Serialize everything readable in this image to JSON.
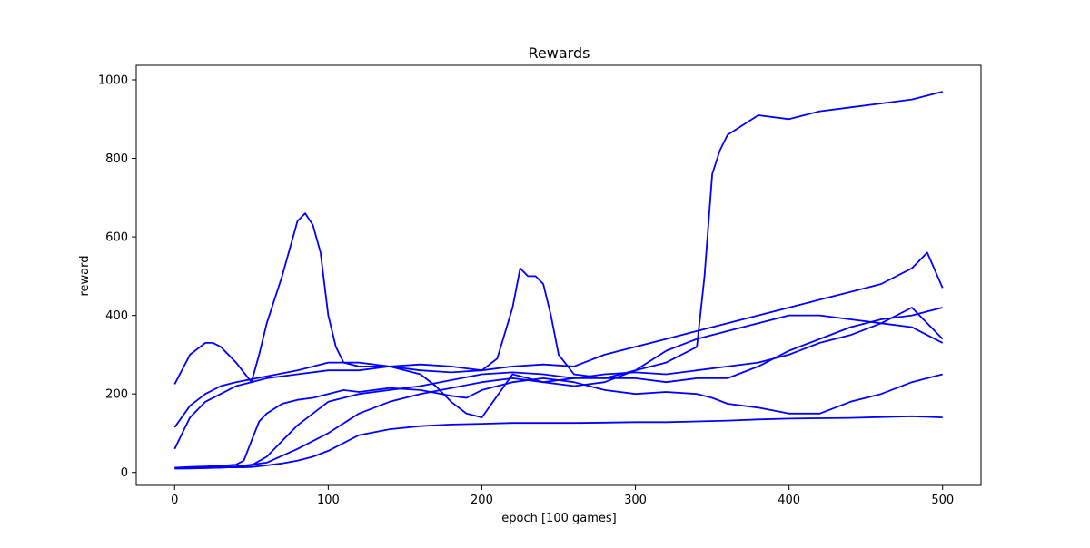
{
  "chart_data": {
    "type": "line",
    "title": "Rewards",
    "xlabel": "epoch [100 games]",
    "ylabel": "reward",
    "xlim": [
      -25,
      525
    ],
    "ylim": [
      -33,
      1037
    ],
    "xticks": [
      0,
      100,
      200,
      300,
      400,
      500
    ],
    "yticks": [
      0,
      200,
      400,
      600,
      800,
      1000
    ],
    "grid": false,
    "color": "#0000ff",
    "series": [
      {
        "x": [
          0,
          5,
          10,
          15,
          20,
          25,
          30,
          35,
          40,
          45,
          50,
          55,
          60,
          70,
          80,
          90,
          100,
          110,
          120,
          140,
          160,
          180,
          200,
          220,
          240,
          260,
          280,
          300,
          320,
          340,
          360,
          380,
          400,
          420,
          440,
          460,
          480,
          500
        ],
        "values": [
          10,
          10,
          11,
          11,
          12,
          12,
          12,
          13,
          13,
          13,
          14,
          16,
          18,
          23,
          30,
          40,
          55,
          75,
          95,
          110,
          118,
          122,
          124,
          126,
          126,
          126,
          127,
          128,
          128,
          130,
          132,
          135,
          137,
          138,
          139,
          141,
          143,
          140
        ]
      },
      {
        "x": [
          0,
          10,
          20,
          30,
          40,
          45,
          50,
          55,
          60,
          70,
          80,
          90,
          100,
          110,
          120,
          140,
          160,
          180,
          190,
          200,
          220,
          240,
          260,
          280,
          300,
          320,
          340,
          350,
          360,
          380,
          400,
          420,
          440,
          460,
          480,
          500
        ],
        "values": [
          12,
          14,
          15,
          17,
          20,
          30,
          80,
          130,
          150,
          175,
          185,
          190,
          200,
          210,
          205,
          215,
          210,
          195,
          190,
          210,
          230,
          240,
          230,
          210,
          200,
          205,
          200,
          190,
          175,
          165,
          150,
          150,
          180,
          200,
          230,
          250
        ]
      },
      {
        "x": [
          0,
          10,
          20,
          25,
          30,
          40,
          50,
          55,
          60,
          70,
          80,
          85,
          90,
          95,
          100,
          105,
          110,
          120,
          140,
          160,
          170,
          180,
          190,
          200,
          220,
          240,
          260,
          280,
          300,
          320,
          340,
          360,
          380,
          400,
          420,
          440,
          460,
          480,
          490,
          500
        ],
        "values": [
          225,
          300,
          330,
          330,
          320,
          280,
          230,
          300,
          380,
          500,
          640,
          660,
          630,
          560,
          400,
          320,
          280,
          270,
          270,
          250,
          220,
          180,
          150,
          140,
          250,
          230,
          220,
          230,
          260,
          310,
          340,
          360,
          380,
          400,
          400,
          390,
          380,
          370,
          350,
          330
        ]
      },
      {
        "x": [
          0,
          5,
          10,
          20,
          30,
          40,
          50,
          60,
          80,
          100,
          120,
          140,
          160,
          180,
          200,
          210,
          220,
          225,
          230,
          235,
          240,
          245,
          250,
          260,
          280,
          300,
          320,
          340,
          360,
          380,
          400,
          420,
          440,
          460,
          480,
          490,
          500
        ],
        "values": [
          60,
          100,
          140,
          180,
          200,
          220,
          230,
          240,
          250,
          260,
          260,
          270,
          260,
          255,
          260,
          290,
          420,
          520,
          500,
          500,
          480,
          400,
          300,
          250,
          240,
          240,
          230,
          240,
          240,
          270,
          310,
          340,
          370,
          390,
          400,
          410,
          420
        ]
      },
      {
        "x": [
          0,
          10,
          20,
          30,
          40,
          60,
          80,
          100,
          120,
          140,
          160,
          180,
          200,
          220,
          240,
          260,
          280,
          300,
          320,
          340,
          360,
          380,
          400,
          420,
          440,
          460,
          480,
          490,
          500
        ],
        "values": [
          115,
          170,
          200,
          220,
          230,
          245,
          260,
          280,
          280,
          270,
          275,
          270,
          260,
          270,
          275,
          270,
          300,
          320,
          340,
          360,
          380,
          400,
          420,
          440,
          460,
          480,
          520,
          560,
          470
        ]
      },
      {
        "x": [
          0,
          10,
          20,
          30,
          40,
          50,
          60,
          80,
          100,
          120,
          140,
          160,
          180,
          200,
          220,
          240,
          260,
          280,
          300,
          320,
          340,
          345,
          350,
          355,
          360,
          380,
          400,
          420,
          440,
          460,
          480,
          500
        ],
        "values": [
          12,
          12,
          13,
          14,
          15,
          18,
          40,
          120,
          180,
          200,
          210,
          220,
          235,
          250,
          255,
          250,
          240,
          240,
          260,
          280,
          320,
          500,
          760,
          820,
          860,
          910,
          900,
          920,
          930,
          940,
          950,
          970
        ]
      },
      {
        "x": [
          0,
          10,
          20,
          30,
          40,
          50,
          60,
          80,
          100,
          120,
          140,
          160,
          180,
          200,
          220,
          240,
          260,
          280,
          300,
          320,
          340,
          360,
          380,
          400,
          420,
          440,
          460,
          480,
          500
        ],
        "values": [
          10,
          10,
          11,
          12,
          15,
          20,
          25,
          60,
          100,
          150,
          180,
          200,
          215,
          230,
          240,
          230,
          240,
          250,
          255,
          250,
          260,
          270,
          280,
          300,
          330,
          350,
          380,
          420,
          340
        ]
      }
    ]
  }
}
